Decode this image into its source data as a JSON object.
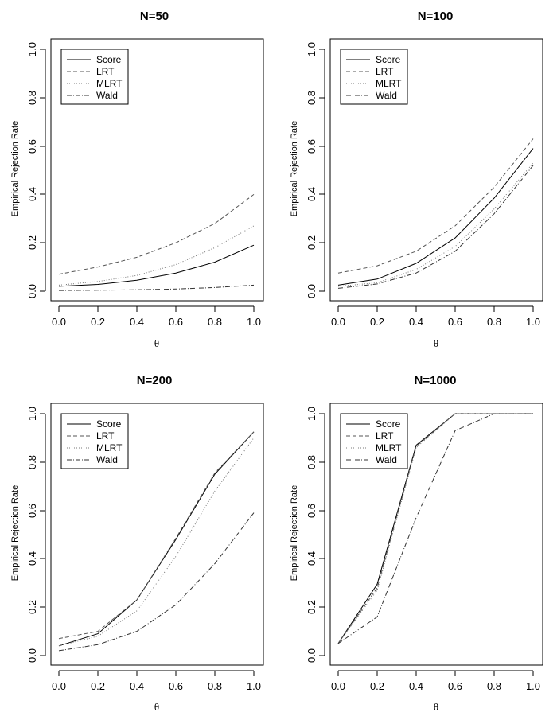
{
  "chart_data": [
    {
      "type": "line",
      "title": "N=50",
      "xlabel": "θ",
      "ylabel": "Empirical Rejection Rate",
      "xlim": [
        0,
        1
      ],
      "ylim": [
        0,
        1
      ],
      "x": [
        0.0,
        0.2,
        0.4,
        0.6,
        0.8,
        1.0
      ],
      "x_ticks": [
        "0.0",
        "0.2",
        "0.4",
        "0.6",
        "0.8",
        "1.0"
      ],
      "y_ticks": [
        "0.0",
        "0.2",
        "0.4",
        "0.6",
        "0.8",
        "1.0"
      ],
      "legend_position": "top-left",
      "grid": false,
      "series": [
        {
          "name": "Score",
          "style": "solid",
          "values": [
            0.02,
            0.028,
            0.045,
            0.075,
            0.12,
            0.19
          ]
        },
        {
          "name": "LRT",
          "style": "dashed",
          "values": [
            0.07,
            0.1,
            0.14,
            0.2,
            0.28,
            0.4
          ]
        },
        {
          "name": "MLRT",
          "style": "dotted",
          "values": [
            0.025,
            0.04,
            0.065,
            0.11,
            0.18,
            0.27
          ]
        },
        {
          "name": "Wald",
          "style": "dotdash",
          "values": [
            0.003,
            0.004,
            0.006,
            0.009,
            0.015,
            0.025
          ]
        }
      ]
    },
    {
      "type": "line",
      "title": "N=100",
      "xlabel": "θ",
      "ylabel": "Empirical Rejection Rate",
      "xlim": [
        0,
        1
      ],
      "ylim": [
        0,
        1
      ],
      "x": [
        0.0,
        0.2,
        0.4,
        0.6,
        0.8,
        1.0
      ],
      "x_ticks": [
        "0.0",
        "0.2",
        "0.4",
        "0.6",
        "0.8",
        "1.0"
      ],
      "y_ticks": [
        "0.0",
        "0.2",
        "0.4",
        "0.6",
        "0.8",
        "1.0"
      ],
      "legend_position": "top-left",
      "grid": false,
      "series": [
        {
          "name": "Score",
          "style": "solid",
          "values": [
            0.025,
            0.05,
            0.115,
            0.22,
            0.385,
            0.59
          ]
        },
        {
          "name": "LRT",
          "style": "dashed",
          "values": [
            0.075,
            0.105,
            0.165,
            0.27,
            0.43,
            0.63
          ]
        },
        {
          "name": "MLRT",
          "style": "dotted",
          "values": [
            0.02,
            0.035,
            0.09,
            0.185,
            0.34,
            0.53
          ]
        },
        {
          "name": "Wald",
          "style": "dotdash",
          "values": [
            0.012,
            0.03,
            0.075,
            0.165,
            0.32,
            0.52
          ]
        }
      ]
    },
    {
      "type": "line",
      "title": "N=200",
      "xlabel": "θ",
      "ylabel": "Empirical Rejection Rate",
      "xlim": [
        0,
        1
      ],
      "ylim": [
        0,
        1
      ],
      "x": [
        0.0,
        0.2,
        0.4,
        0.6,
        0.8,
        1.0
      ],
      "x_ticks": [
        "0.0",
        "0.2",
        "0.4",
        "0.6",
        "0.8",
        "1.0"
      ],
      "y_ticks": [
        "0.0",
        "0.2",
        "0.4",
        "0.6",
        "0.8",
        "1.0"
      ],
      "legend_position": "top-left",
      "grid": false,
      "series": [
        {
          "name": "Score",
          "style": "solid",
          "values": [
            0.04,
            0.09,
            0.23,
            0.48,
            0.75,
            0.925
          ]
        },
        {
          "name": "LRT",
          "style": "dashed",
          "values": [
            0.07,
            0.1,
            0.23,
            0.485,
            0.755,
            0.925
          ]
        },
        {
          "name": "MLRT",
          "style": "dotted",
          "values": [
            0.04,
            0.08,
            0.185,
            0.41,
            0.68,
            0.9
          ]
        },
        {
          "name": "Wald",
          "style": "dotdash",
          "values": [
            0.02,
            0.045,
            0.1,
            0.21,
            0.38,
            0.59
          ]
        }
      ]
    },
    {
      "type": "line",
      "title": "N=1000",
      "xlabel": "θ",
      "ylabel": "Empirical Rejection Rate",
      "xlim": [
        0,
        1
      ],
      "ylim": [
        0,
        1
      ],
      "x": [
        0.0,
        0.2,
        0.4,
        0.6,
        0.8,
        1.0
      ],
      "x_ticks": [
        "0.0",
        "0.2",
        "0.4",
        "0.6",
        "0.8",
        "1.0"
      ],
      "y_ticks": [
        "0.0",
        "0.2",
        "0.4",
        "0.6",
        "0.8",
        "1.0"
      ],
      "legend_position": "top-left",
      "grid": false,
      "series": [
        {
          "name": "Score",
          "style": "solid",
          "values": [
            0.05,
            0.295,
            0.87,
            1.0,
            1.0,
            1.0
          ]
        },
        {
          "name": "LRT",
          "style": "dashed",
          "values": [
            0.05,
            0.28,
            0.865,
            1.0,
            1.0,
            1.0
          ]
        },
        {
          "name": "MLRT",
          "style": "dotted",
          "values": [
            0.05,
            0.27,
            0.86,
            1.0,
            1.0,
            1.0
          ]
        },
        {
          "name": "Wald",
          "style": "dotdash",
          "values": [
            0.05,
            0.16,
            0.57,
            0.93,
            1.0,
            1.0
          ]
        }
      ]
    }
  ],
  "colors": {
    "Score": "#000000",
    "LRT": "#555555",
    "MLRT": "#777777",
    "Wald": "#333333"
  }
}
